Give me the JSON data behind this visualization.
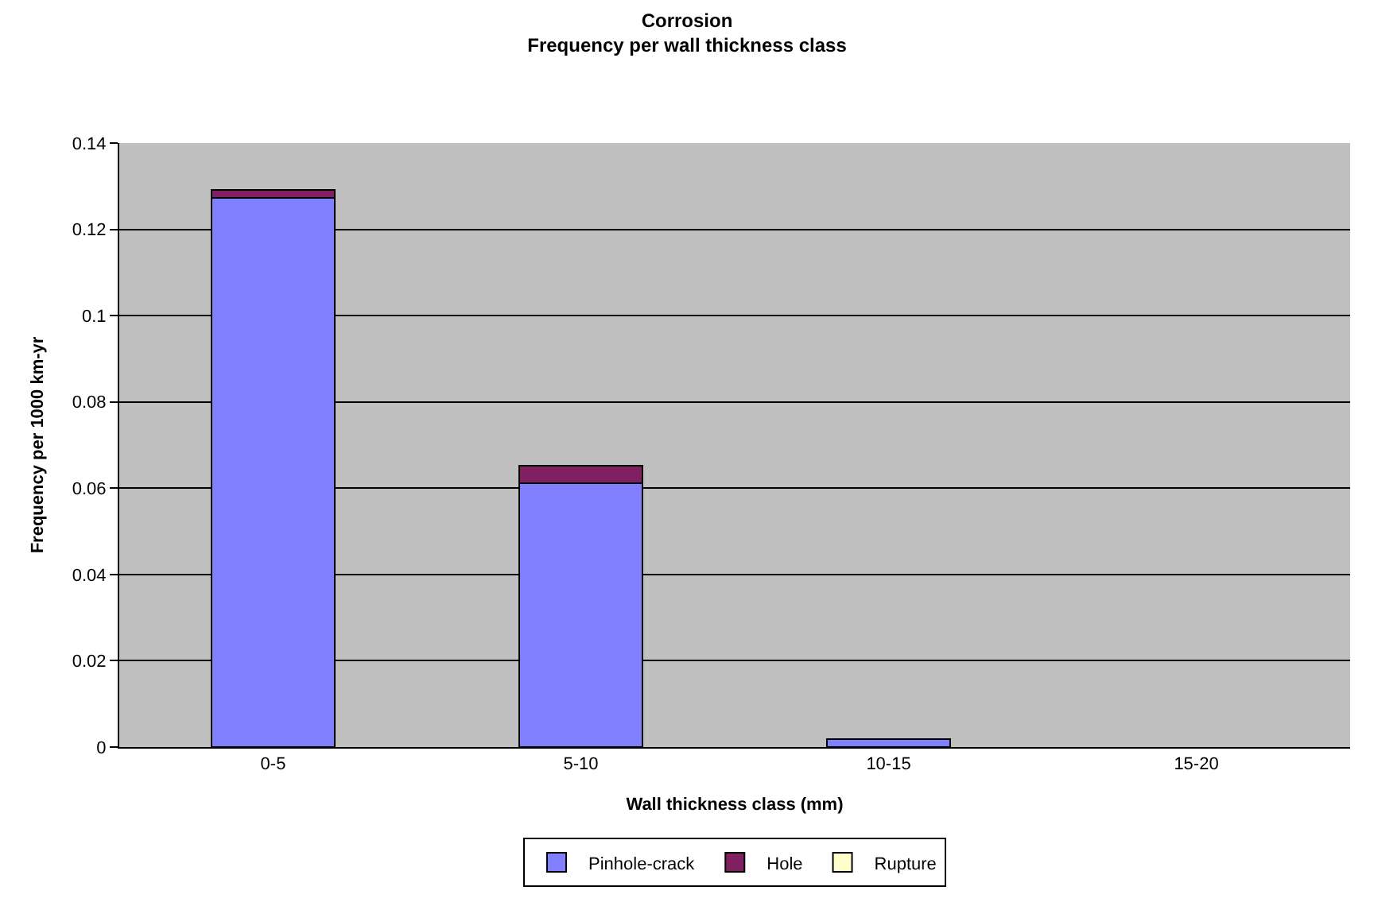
{
  "chart_data": {
    "type": "bar",
    "title": "Corrosion",
    "subtitle": "Frequency per wall thickness class",
    "xlabel": "Wall thickness class (mm)",
    "ylabel": "Frequency per 1000 km-yr",
    "categories": [
      "0-5",
      "5-10",
      "10-15",
      "15-20"
    ],
    "series": [
      {
        "name": "Pinhole-crack",
        "color": "#8080ff",
        "values": [
          0.1273,
          0.0612,
          0.0018,
          null
        ]
      },
      {
        "name": "Hole",
        "color": "#802060",
        "values": [
          0.0019,
          0.004,
          null,
          null
        ]
      },
      {
        "name": "Rupture",
        "color": "#ffffcc",
        "values": [
          null,
          null,
          null,
          null
        ]
      }
    ],
    "stacked": true,
    "ylim": [
      0,
      0.14
    ],
    "yticks": [
      0,
      0.02,
      0.04,
      0.06,
      0.08,
      0.1,
      0.12,
      0.14
    ],
    "grid": "y",
    "legend": "bottom"
  }
}
